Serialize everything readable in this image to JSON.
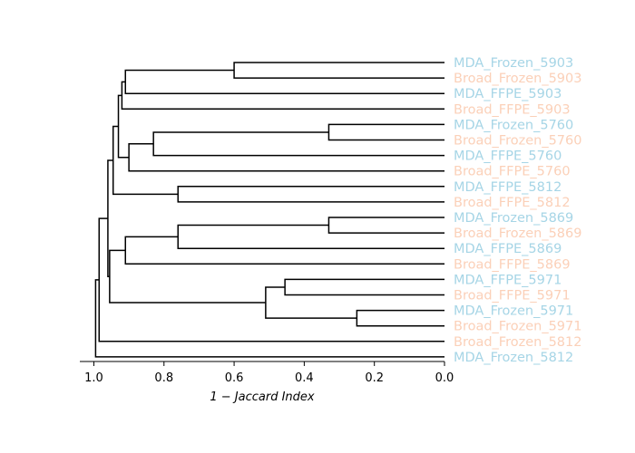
{
  "chart_data": {
    "type": "dendrogram",
    "orientation": "left",
    "xlabel": "1 − Jaccard Index",
    "xlim": [
      1.04,
      0.0
    ],
    "xticks": [
      1.0,
      0.8,
      0.6,
      0.4,
      0.2,
      0.0
    ],
    "xtick_labels": [
      "1.0",
      "0.8",
      "0.6",
      "0.4",
      "0.2",
      "0.0"
    ],
    "colors": {
      "MDA": "#a6d5e6",
      "Broad": "#fbd0b8",
      "tree": "#000000"
    },
    "leaves": [
      {
        "label": "MDA_Frozen_5903",
        "group": "MDA"
      },
      {
        "label": "Broad_Frozen_5903",
        "group": "Broad"
      },
      {
        "label": "MDA_FFPE_5903",
        "group": "MDA"
      },
      {
        "label": "Broad_FFPE_5903",
        "group": "Broad"
      },
      {
        "label": "MDA_Frozen_5760",
        "group": "MDA"
      },
      {
        "label": "Broad_Frozen_5760",
        "group": "Broad"
      },
      {
        "label": "MDA_FFPE_5760",
        "group": "MDA"
      },
      {
        "label": "Broad_FFPE_5760",
        "group": "Broad"
      },
      {
        "label": "MDA_FFPE_5812",
        "group": "MDA"
      },
      {
        "label": "Broad_FFPE_5812",
        "group": "Broad"
      },
      {
        "label": "MDA_Frozen_5869",
        "group": "MDA"
      },
      {
        "label": "Broad_Frozen_5869",
        "group": "Broad"
      },
      {
        "label": "MDA_FFPE_5869",
        "group": "MDA"
      },
      {
        "label": "Broad_FFPE_5869",
        "group": "Broad"
      },
      {
        "label": "MDA_FFPE_5971",
        "group": "MDA"
      },
      {
        "label": "Broad_FFPE_5971",
        "group": "Broad"
      },
      {
        "label": "MDA_Frozen_5971",
        "group": "MDA"
      },
      {
        "label": "Broad_Frozen_5971",
        "group": "Broad"
      },
      {
        "label": "Broad_Frozen_5812",
        "group": "Broad"
      },
      {
        "label": "MDA_Frozen_5812",
        "group": "MDA"
      }
    ],
    "merges": [
      {
        "id": "n1",
        "children": [
          "L0",
          "L1"
        ],
        "height": 0.6
      },
      {
        "id": "n2",
        "children": [
          "n1",
          "L2"
        ],
        "height": 0.91
      },
      {
        "id": "n3",
        "children": [
          "n2",
          "L3"
        ],
        "height": 0.92
      },
      {
        "id": "n4",
        "children": [
          "L4",
          "L5"
        ],
        "height": 0.33
      },
      {
        "id": "n5",
        "children": [
          "n4",
          "L6"
        ],
        "height": 0.83
      },
      {
        "id": "n6",
        "children": [
          "n5",
          "L7"
        ],
        "height": 0.9
      },
      {
        "id": "n7",
        "children": [
          "n3",
          "n6"
        ],
        "height": 0.93
      },
      {
        "id": "n8",
        "children": [
          "L8",
          "L9"
        ],
        "height": 0.76
      },
      {
        "id": "n9",
        "children": [
          "n7",
          "n8"
        ],
        "height": 0.945
      },
      {
        "id": "n10",
        "children": [
          "L10",
          "L11"
        ],
        "height": 0.33
      },
      {
        "id": "n11",
        "children": [
          "n10",
          "L12"
        ],
        "height": 0.76
      },
      {
        "id": "n12",
        "children": [
          "n11",
          "L13"
        ],
        "height": 0.91
      },
      {
        "id": "n13",
        "children": [
          "L14",
          "L15"
        ],
        "height": 0.455
      },
      {
        "id": "n14",
        "children": [
          "L16",
          "L17"
        ],
        "height": 0.25
      },
      {
        "id": "n15",
        "children": [
          "n13",
          "n14"
        ],
        "height": 0.51
      },
      {
        "id": "n16",
        "children": [
          "n12",
          "n15"
        ],
        "height": 0.955
      },
      {
        "id": "n17",
        "children": [
          "n9",
          "n16"
        ],
        "height": 0.96
      },
      {
        "id": "n18",
        "children": [
          "n17",
          "L18"
        ],
        "height": 0.985
      },
      {
        "id": "n19",
        "children": [
          "n18",
          "L19"
        ],
        "height": 0.995
      }
    ]
  }
}
